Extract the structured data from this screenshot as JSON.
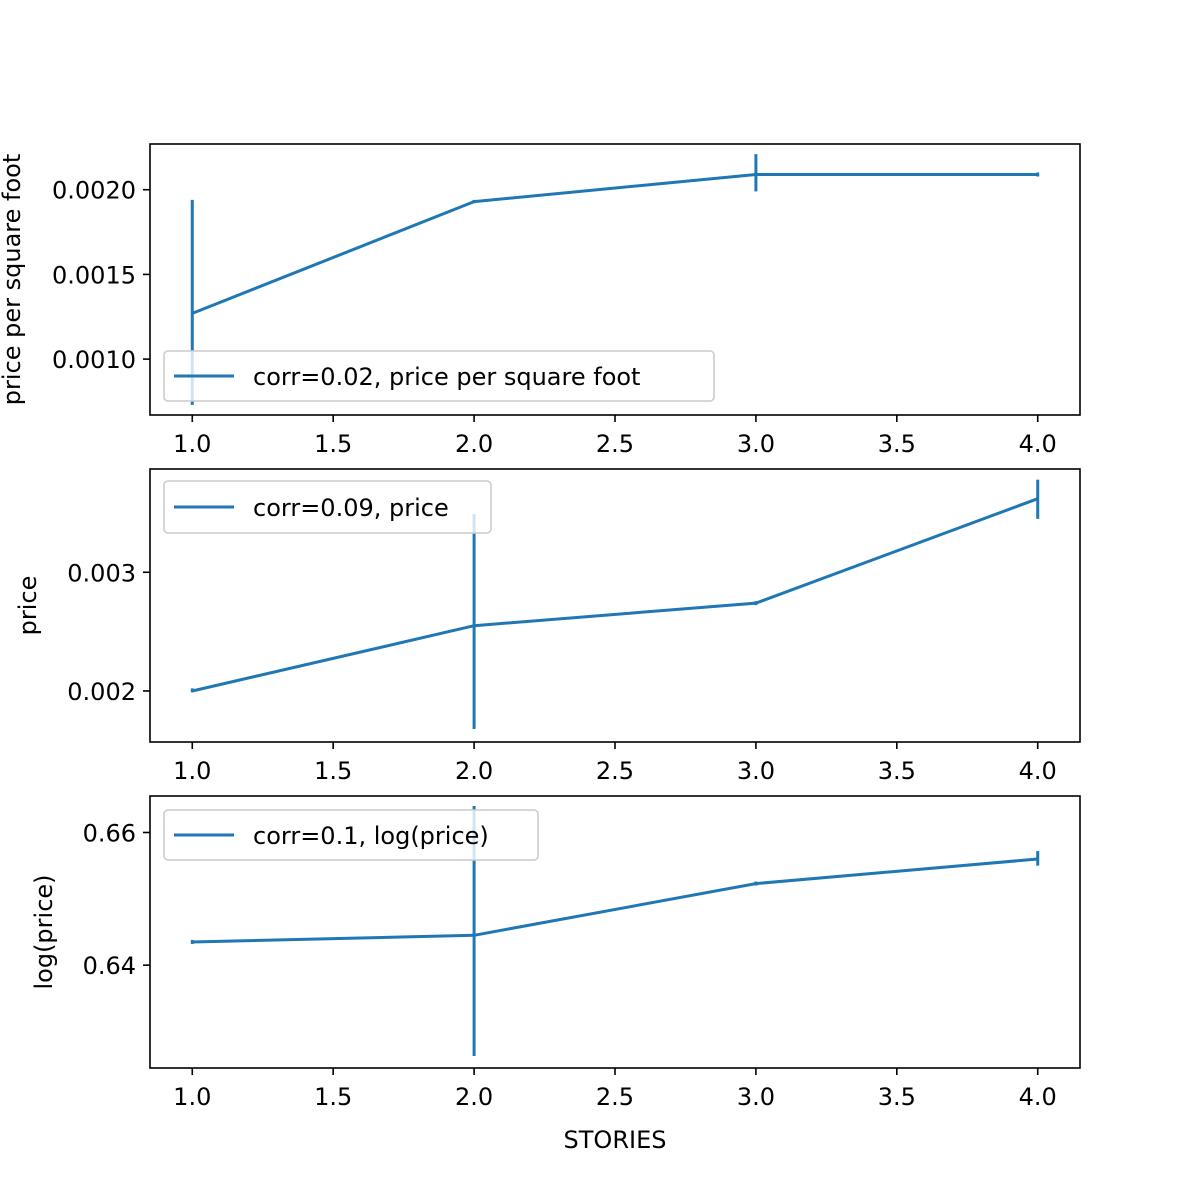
{
  "chart_data": [
    {
      "type": "line",
      "ylabel": "price per square foot",
      "xlim": [
        0.85,
        4.15
      ],
      "ylim": [
        0.00067,
        0.00227
      ],
      "x": [
        1.0,
        2.0,
        3.0,
        4.0
      ],
      "series": [
        {
          "name": "corr=0.02, price per square foot",
          "values": [
            0.00127,
            0.00193,
            0.00209,
            0.00209
          ],
          "err_low": [
            0.00073,
            0.00192,
            0.00199,
            0.00209
          ],
          "err_high": [
            0.00194,
            0.00194,
            0.00221,
            0.00209
          ]
        }
      ],
      "xticks": [
        "1.0",
        "1.5",
        "2.0",
        "2.5",
        "3.0",
        "3.5",
        "4.0"
      ],
      "yticks": [
        0.001,
        0.0015,
        0.002
      ],
      "ytick_labels": [
        "0.0010",
        "0.0015",
        "0.0020"
      ],
      "legend_position": "lower-left",
      "grid": false
    },
    {
      "type": "line",
      "ylabel": "price",
      "xlim": [
        0.85,
        4.15
      ],
      "ylim": [
        0.00157,
        0.00387
      ],
      "x": [
        1.0,
        2.0,
        3.0,
        4.0
      ],
      "series": [
        {
          "name": "corr=0.09, price",
          "values": [
            0.002,
            0.00255,
            0.00274,
            0.00362
          ],
          "err_low": [
            0.002,
            0.00168,
            0.00273,
            0.00345
          ],
          "err_high": [
            0.00201,
            0.00349,
            0.00275,
            0.00378
          ]
        }
      ],
      "xticks": [
        "1.0",
        "1.5",
        "2.0",
        "2.5",
        "3.0",
        "3.5",
        "4.0"
      ],
      "yticks": [
        0.002,
        0.003
      ],
      "ytick_labels": [
        "0.002",
        "0.003"
      ],
      "legend_position": "upper-left",
      "grid": false
    },
    {
      "type": "line",
      "ylabel": "log(price)",
      "xlabel": "STORIES",
      "xlim": [
        0.85,
        4.15
      ],
      "ylim": [
        0.6245,
        0.6655
      ],
      "x": [
        1.0,
        2.0,
        3.0,
        4.0
      ],
      "series": [
        {
          "name": "corr=0.1, log(price)",
          "values": [
            0.6435,
            0.6445,
            0.6523,
            0.656
          ],
          "err_low": [
            0.6434,
            0.6263,
            0.6522,
            0.655
          ],
          "err_high": [
            0.6436,
            0.664,
            0.6524,
            0.6572
          ]
        }
      ],
      "xticks": [
        "1.0",
        "1.5",
        "2.0",
        "2.5",
        "3.0",
        "3.5",
        "4.0"
      ],
      "yticks": [
        0.64,
        0.66
      ],
      "ytick_labels": [
        "0.64",
        "0.66"
      ],
      "legend_position": "upper-left",
      "grid": false
    }
  ],
  "colors": {
    "line": "#1f77b4",
    "axes": "#000000",
    "legend_border": "#cccccc"
  }
}
